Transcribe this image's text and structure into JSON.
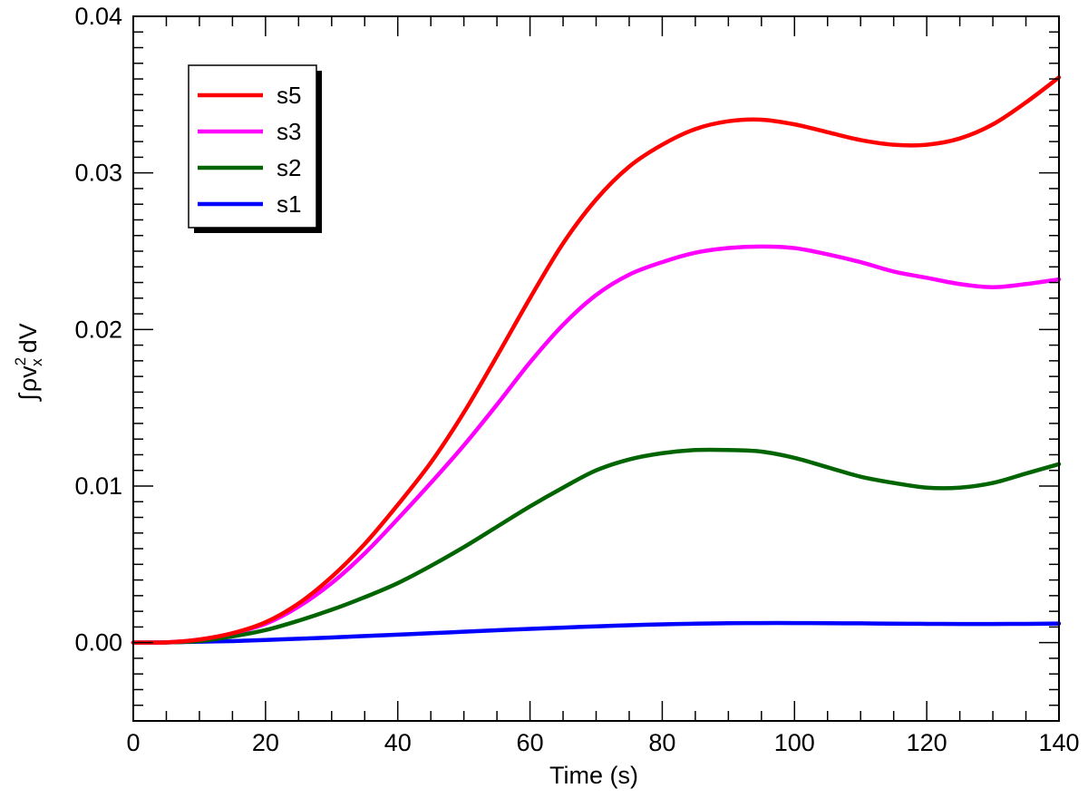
{
  "chart_data": {
    "type": "line",
    "xlabel": "Time (s)",
    "ylabel": {
      "integral": "∫",
      "rho": "ρ",
      "v": "v",
      "superscript": "2",
      "subscript": "x",
      "suffix": "dV"
    },
    "xlim": [
      0,
      140
    ],
    "ylim": [
      -0.005,
      0.04
    ],
    "x_ticks": [
      0,
      20,
      40,
      60,
      80,
      100,
      120,
      140
    ],
    "x_tick_labels": [
      "0",
      "20",
      "40",
      "60",
      "80",
      "100",
      "120",
      "140"
    ],
    "x_minor_step": 5,
    "y_ticks": [
      0,
      0.01,
      0.02,
      0.03,
      0.04
    ],
    "y_tick_labels": [
      "0.00",
      "0.01",
      "0.02",
      "0.03",
      "0.04"
    ],
    "y_minor_step": 0.001,
    "grid": false,
    "legend_position": "top-left",
    "x": [
      0,
      5,
      10,
      15,
      20,
      25,
      30,
      35,
      40,
      45,
      50,
      55,
      60,
      65,
      70,
      75,
      80,
      85,
      90,
      95,
      100,
      105,
      110,
      115,
      120,
      125,
      130,
      135,
      140
    ],
    "series": [
      {
        "name": "s5",
        "color": "#ff0000",
        "values": [
          0.0,
          2e-05,
          0.0002,
          0.0006,
          0.0013,
          0.0025,
          0.0042,
          0.0063,
          0.0088,
          0.0115,
          0.0147,
          0.0183,
          0.022,
          0.0255,
          0.0283,
          0.0304,
          0.0318,
          0.0328,
          0.0333,
          0.0334,
          0.0331,
          0.0326,
          0.0321,
          0.0318,
          0.0318,
          0.0322,
          0.0331,
          0.0345,
          0.0361
        ]
      },
      {
        "name": "s3",
        "color": "#ff00ff",
        "values": [
          0.0,
          2e-05,
          0.0002,
          0.0006,
          0.0012,
          0.0023,
          0.0038,
          0.0057,
          0.0079,
          0.0102,
          0.0126,
          0.0152,
          0.0179,
          0.0203,
          0.0222,
          0.0235,
          0.0243,
          0.0249,
          0.0252,
          0.0253,
          0.0252,
          0.0248,
          0.0243,
          0.0237,
          0.0233,
          0.0229,
          0.0227,
          0.0229,
          0.0232
        ]
      },
      {
        "name": "s2",
        "color": "#006400",
        "values": [
          0.0,
          1e-05,
          0.0001,
          0.0004,
          0.0008,
          0.0014,
          0.0021,
          0.0029,
          0.0038,
          0.0049,
          0.0061,
          0.0074,
          0.0087,
          0.0099,
          0.011,
          0.0117,
          0.0121,
          0.0123,
          0.0123,
          0.0122,
          0.0118,
          0.0112,
          0.0106,
          0.0102,
          0.0099,
          0.0099,
          0.0102,
          0.0108,
          0.0114
        ]
      },
      {
        "name": "s1",
        "color": "#0000ff",
        "values": [
          0.0,
          2e-05,
          6e-05,
          0.0001,
          0.00017,
          0.00025,
          0.00033,
          0.00042,
          0.00051,
          0.0006,
          0.0007,
          0.00079,
          0.00088,
          0.00096,
          0.00104,
          0.00111,
          0.00117,
          0.00121,
          0.00124,
          0.00125,
          0.00125,
          0.00124,
          0.00123,
          0.00121,
          0.0012,
          0.00119,
          0.00119,
          0.0012,
          0.00122
        ]
      }
    ]
  }
}
